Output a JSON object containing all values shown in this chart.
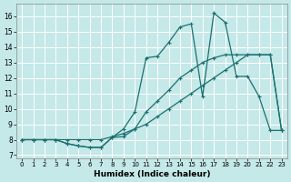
{
  "bg_color": "#c5e8e8",
  "grid_color": "#b8d8d8",
  "line_color": "#1a7070",
  "xlabel": "Humidex (Indice chaleur)",
  "xlim": [
    -0.5,
    23.5
  ],
  "ylim": [
    6.8,
    16.8
  ],
  "xticks": [
    0,
    1,
    2,
    3,
    4,
    5,
    6,
    7,
    8,
    9,
    10,
    11,
    12,
    13,
    14,
    15,
    16,
    17,
    18,
    19,
    20,
    21,
    22,
    23
  ],
  "yticks": [
    7,
    8,
    9,
    10,
    11,
    12,
    13,
    14,
    15,
    16
  ],
  "line1_x": [
    0,
    1,
    2,
    3,
    4,
    5,
    6,
    7,
    8,
    9,
    10,
    11,
    12,
    13,
    14,
    15,
    16,
    17,
    18,
    19,
    20,
    21,
    22,
    23
  ],
  "line1_y": [
    8.0,
    8.0,
    8.0,
    8.0,
    8.0,
    8.0,
    8.0,
    8.0,
    8.2,
    8.4,
    8.7,
    9.0,
    9.5,
    10.0,
    10.5,
    11.0,
    11.5,
    12.0,
    12.5,
    13.0,
    13.5,
    13.5,
    13.5,
    8.6
  ],
  "line2_x": [
    0,
    1,
    2,
    3,
    4,
    5,
    6,
    7,
    8,
    9,
    10,
    11,
    12,
    13,
    14,
    15,
    16,
    17,
    18,
    19,
    20,
    21,
    22,
    23
  ],
  "line2_y": [
    8.0,
    8.0,
    8.0,
    8.0,
    7.75,
    7.6,
    7.5,
    7.5,
    8.15,
    8.7,
    9.8,
    13.3,
    13.4,
    14.3,
    15.3,
    15.5,
    10.8,
    16.2,
    15.6,
    12.1,
    12.1,
    10.8,
    8.6,
    8.6
  ],
  "line3_x": [
    0,
    1,
    2,
    3,
    4,
    5,
    6,
    7,
    8,
    9,
    10,
    11,
    12,
    13,
    14,
    15,
    16,
    17,
    18,
    19,
    20,
    21,
    22,
    23
  ],
  "line3_y": [
    8.0,
    8.0,
    8.0,
    8.0,
    7.75,
    7.6,
    7.5,
    7.5,
    8.15,
    8.2,
    8.7,
    9.8,
    10.5,
    11.2,
    12.0,
    12.5,
    13.0,
    13.3,
    13.5,
    13.5,
    13.5,
    13.5,
    13.5,
    8.6
  ]
}
